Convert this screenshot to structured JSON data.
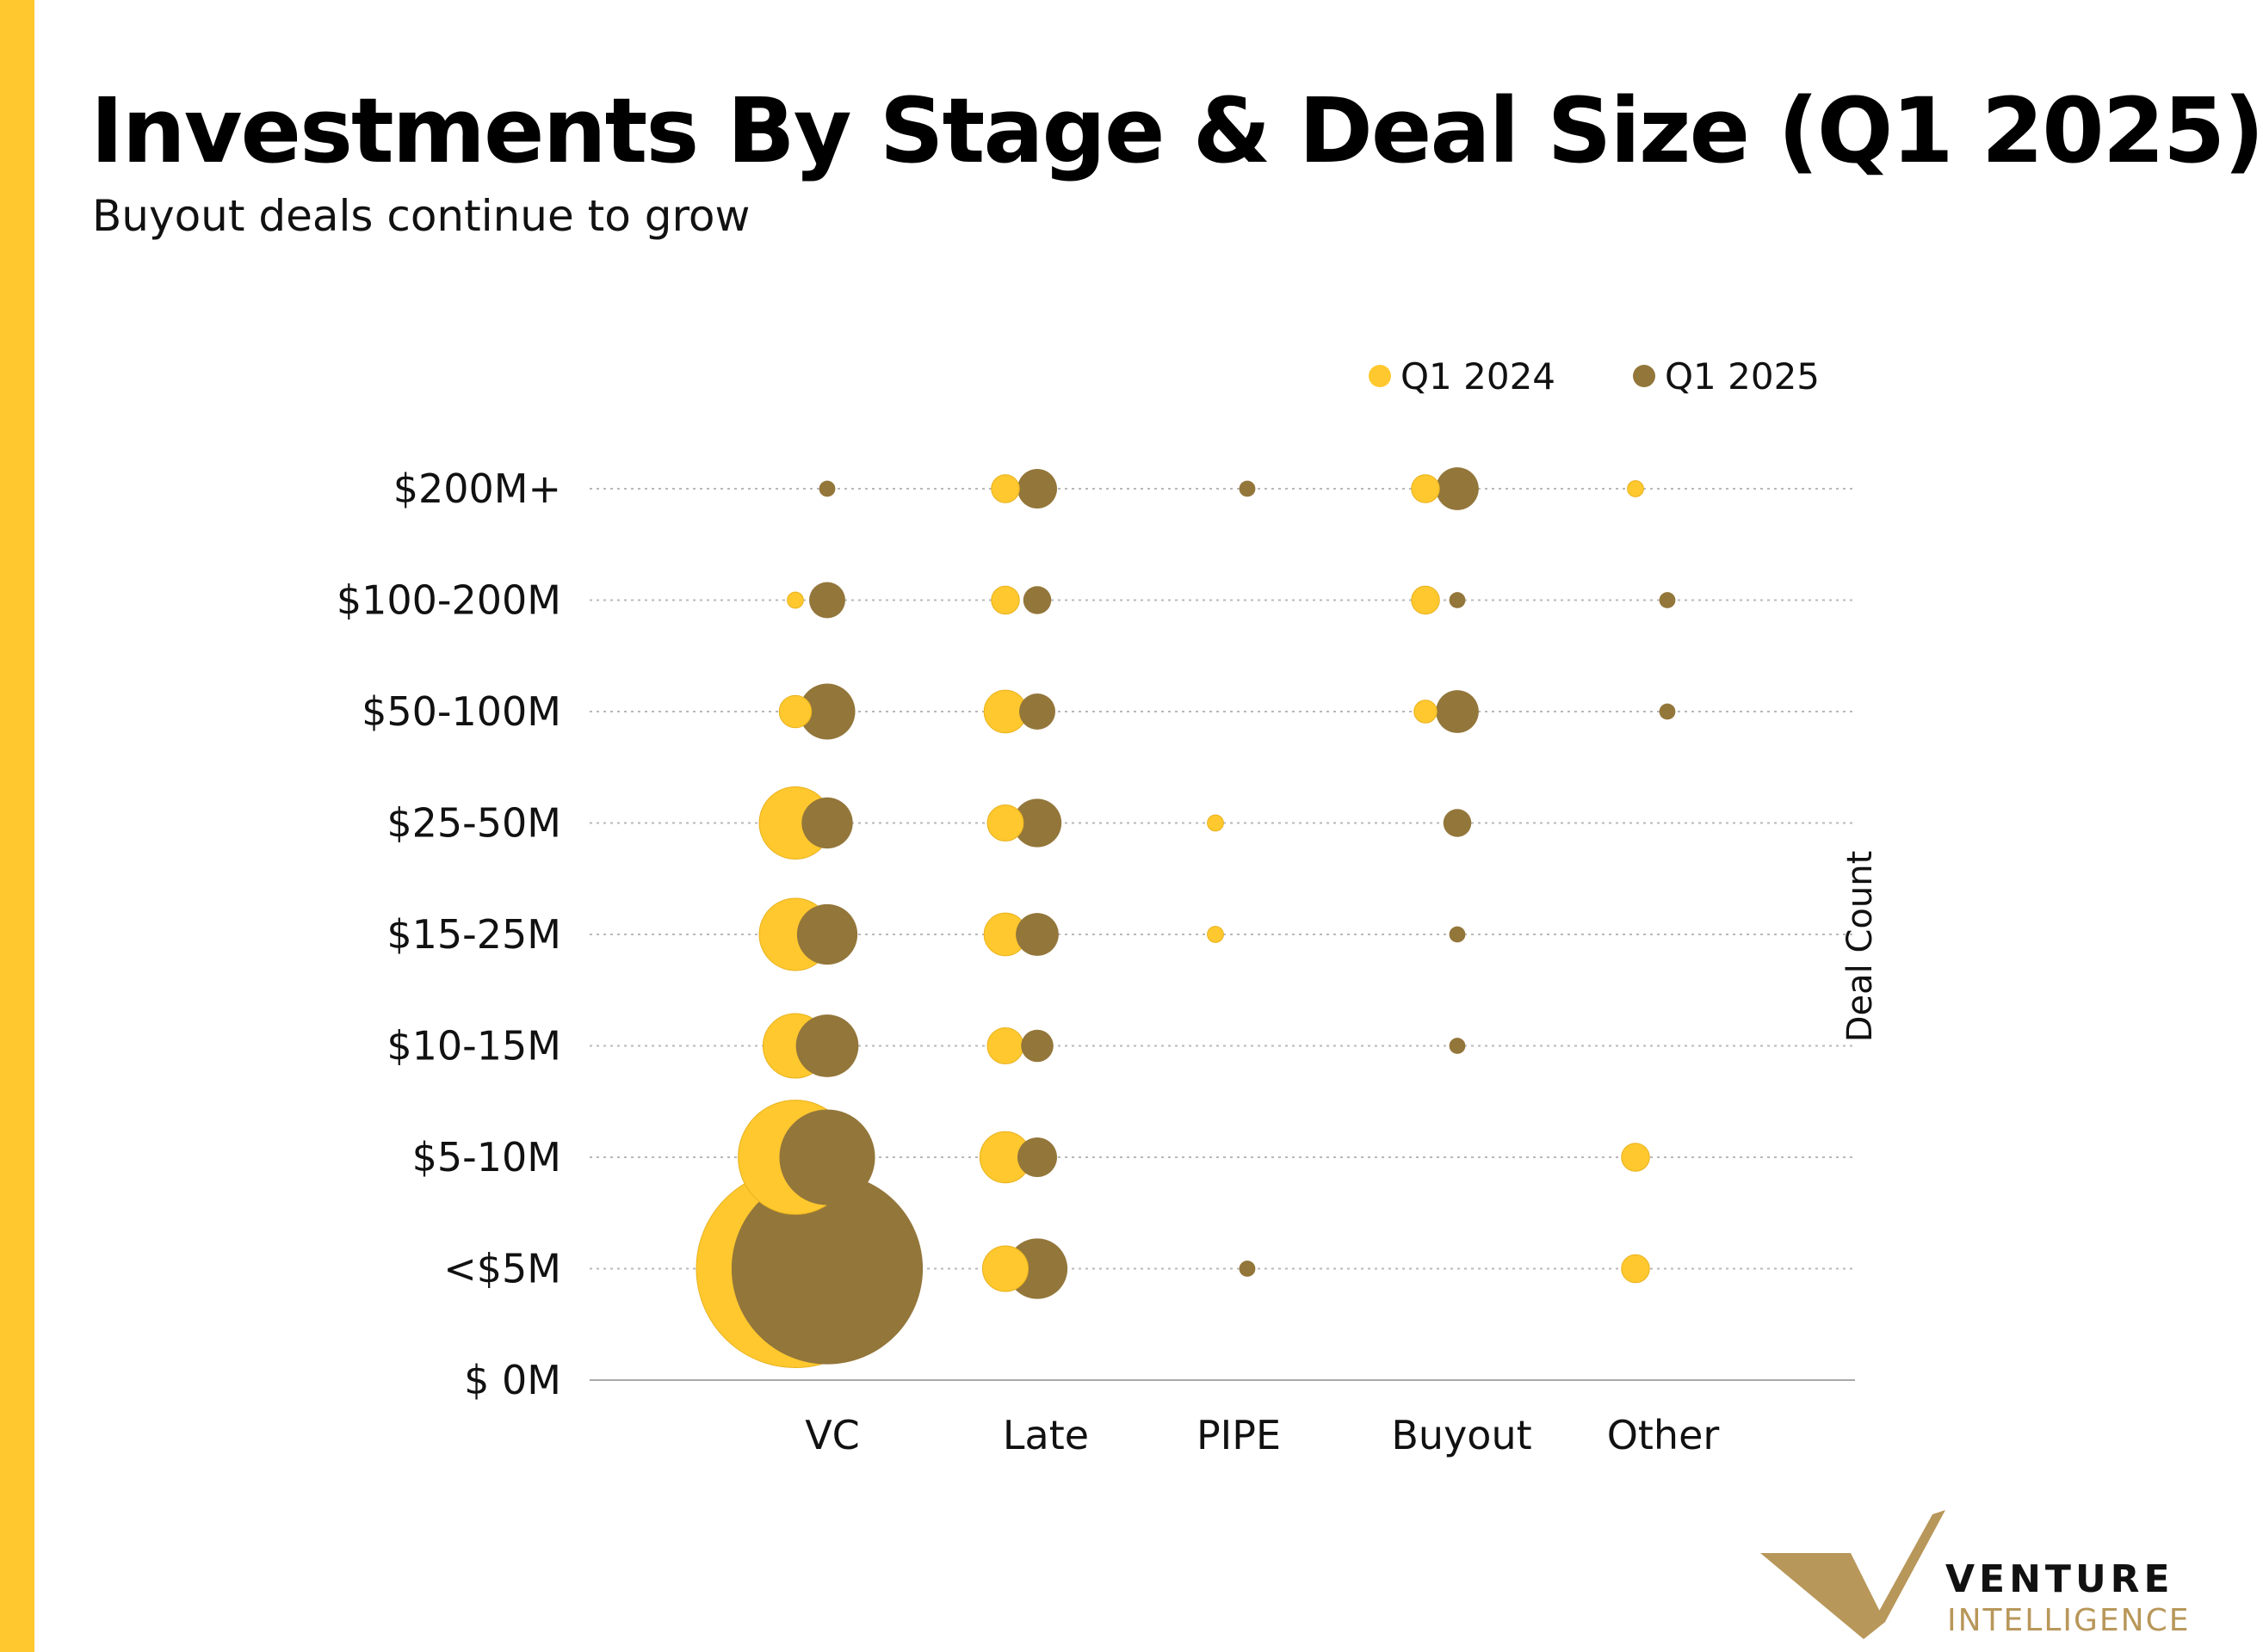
{
  "colors": {
    "accent": "#FFC82E",
    "q1_2024": "#FFC82E",
    "q1_2025": "#93763A",
    "grid": "#B8B8B8",
    "axis": "#A8A8A8",
    "logo_gold": "#B8975A"
  },
  "header": {
    "title": "Investments By Stage & Deal Size (Q1 2025)",
    "subtitle": "Buyout deals continue to grow"
  },
  "logo": {
    "word1": "VENTURE",
    "word2": "INTELLIGENCE",
    "icon": "checkmark-v-logo-icon"
  },
  "chart_data": {
    "type": "scatter",
    "subtype": "bubble",
    "title": "Investments By Stage & Deal Size (Q1 2025)",
    "subtitle": "Buyout deals continue to grow",
    "x_categories": [
      "VC",
      "Late",
      "PIPE",
      "Buyout",
      "Other"
    ],
    "y_categories": [
      "$ 0M",
      "<$5M",
      "$5-10M",
      "$10-15M",
      "$15-25M",
      "$25-50M",
      "$50-100M",
      "$100-200M",
      "$200M+"
    ],
    "size_label": "Deal Count",
    "legend": {
      "position": "top-right",
      "entries": [
        "Q1 2024",
        "Q1 2025"
      ]
    },
    "grid": true,
    "series": [
      {
        "name": "Q1 2024",
        "color": "#FFC82E",
        "points": [
          {
            "x": "VC",
            "y": "<$5M",
            "size": 150
          },
          {
            "x": "VC",
            "y": "$5-10M",
            "size": 50
          },
          {
            "x": "VC",
            "y": "$10-15M",
            "size": 16
          },
          {
            "x": "VC",
            "y": "$15-25M",
            "size": 20
          },
          {
            "x": "VC",
            "y": "$25-50M",
            "size": 20
          },
          {
            "x": "VC",
            "y": "$50-100M",
            "size": 4
          },
          {
            "x": "VC",
            "y": "$100-200M",
            "size": 1
          },
          {
            "x": "Late",
            "y": "<$5M",
            "size": 8
          },
          {
            "x": "Late",
            "y": "$5-10M",
            "size": 10
          },
          {
            "x": "Late",
            "y": "$10-15M",
            "size": 5
          },
          {
            "x": "Late",
            "y": "$15-25M",
            "size": 7
          },
          {
            "x": "Late",
            "y": "$25-50M",
            "size": 5
          },
          {
            "x": "Late",
            "y": "$50-100M",
            "size": 7
          },
          {
            "x": "Late",
            "y": "$100-200M",
            "size": 3
          },
          {
            "x": "Late",
            "y": "$200M+",
            "size": 3
          },
          {
            "x": "PIPE",
            "y": "$15-25M",
            "size": 1
          },
          {
            "x": "PIPE",
            "y": "$25-50M",
            "size": 1
          },
          {
            "x": "Buyout",
            "y": "$50-100M",
            "size": 2
          },
          {
            "x": "Buyout",
            "y": "$100-200M",
            "size": 3
          },
          {
            "x": "Buyout",
            "y": "$200M+",
            "size": 3
          },
          {
            "x": "Other",
            "y": "<$5M",
            "size": 3
          },
          {
            "x": "Other",
            "y": "$5-10M",
            "size": 3
          },
          {
            "x": "Other",
            "y": "$200M+",
            "size": 1
          }
        ]
      },
      {
        "name": "Q1 2025",
        "color": "#93763A",
        "points": [
          {
            "x": "VC",
            "y": "<$5M",
            "size": 140
          },
          {
            "x": "VC",
            "y": "$5-10M",
            "size": 35
          },
          {
            "x": "VC",
            "y": "$10-15M",
            "size": 15
          },
          {
            "x": "VC",
            "y": "$15-25M",
            "size": 14
          },
          {
            "x": "VC",
            "y": "$25-50M",
            "size": 10
          },
          {
            "x": "VC",
            "y": "$50-100M",
            "size": 12
          },
          {
            "x": "VC",
            "y": "$100-200M",
            "size": 5
          },
          {
            "x": "VC",
            "y": "$200M+",
            "size": 1
          },
          {
            "x": "Late",
            "y": "<$5M",
            "size": 14
          },
          {
            "x": "Late",
            "y": "$5-10M",
            "size": 6
          },
          {
            "x": "Late",
            "y": "$10-15M",
            "size": 4
          },
          {
            "x": "Late",
            "y": "$15-25M",
            "size": 7
          },
          {
            "x": "Late",
            "y": "$25-50M",
            "size": 9
          },
          {
            "x": "Late",
            "y": "$50-100M",
            "size": 5
          },
          {
            "x": "Late",
            "y": "$100-200M",
            "size": 3
          },
          {
            "x": "Late",
            "y": "$200M+",
            "size": 6
          },
          {
            "x": "PIPE",
            "y": "<$5M",
            "size": 1
          },
          {
            "x": "PIPE",
            "y": "$200M+",
            "size": 1
          },
          {
            "x": "Buyout",
            "y": "$10-15M",
            "size": 1
          },
          {
            "x": "Buyout",
            "y": "$15-25M",
            "size": 1
          },
          {
            "x": "Buyout",
            "y": "$25-50M",
            "size": 3
          },
          {
            "x": "Buyout",
            "y": "$50-100M",
            "size": 7
          },
          {
            "x": "Buyout",
            "y": "$100-200M",
            "size": 1
          },
          {
            "x": "Buyout",
            "y": "$200M+",
            "size": 7
          },
          {
            "x": "Other",
            "y": "$50-100M",
            "size": 1
          },
          {
            "x": "Other",
            "y": "$100-200M",
            "size": 1
          }
        ]
      }
    ]
  }
}
